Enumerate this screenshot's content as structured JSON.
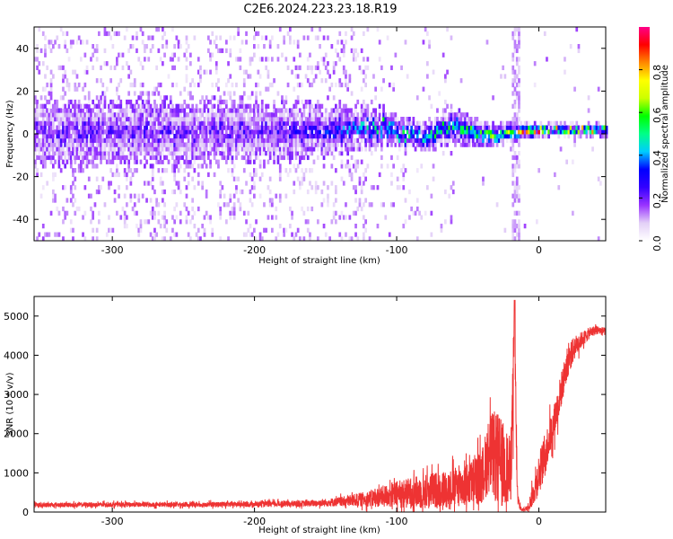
{
  "title": "C2E6.2024.223.23.18.R19",
  "chart_data": [
    {
      "type": "heatmap",
      "title": "C2E6.2024.223.23.18.R19",
      "xlabel": "Height of straight line (km)",
      "ylabel": "Frequency (Hz)",
      "xlim": [
        -355,
        47
      ],
      "ylim": [
        -50,
        50
      ],
      "x_ticks": [
        -300,
        -200,
        -100,
        0
      ],
      "y_ticks": [
        -40,
        -20,
        0,
        20,
        40
      ],
      "colorbar": {
        "label": "Normalized spectral amplitude",
        "range": [
          0,
          1
        ],
        "ticks": [
          "0.0",
          "0.2",
          "0.4",
          "0.6",
          "0.8"
        ],
        "colormap": [
          "#ffffff",
          "#e3d0f7",
          "#9933ff",
          "#3300ff",
          "#0000ff",
          "#00ccff",
          "#00ff88",
          "#00ff00",
          "#ccff00",
          "#ffff00",
          "#ff8800",
          "#ff0000",
          "#ff0088"
        ]
      },
      "signal_track": [
        {
          "x": -355,
          "freq": 0,
          "spread": 10,
          "amp": 0.2
        },
        {
          "x": -200,
          "freq": 0,
          "spread": 9,
          "amp": 0.2
        },
        {
          "x": -140,
          "freq": 1,
          "spread": 7,
          "amp": 0.3
        },
        {
          "x": -110,
          "freq": 2,
          "spread": 5,
          "amp": 0.45
        },
        {
          "x": -80,
          "freq": -2,
          "spread": 4,
          "amp": 0.5
        },
        {
          "x": -60,
          "freq": 3,
          "spread": 5,
          "amp": 0.45
        },
        {
          "x": -40,
          "freq": -1,
          "spread": 4,
          "amp": 0.55
        },
        {
          "x": -30,
          "freq": -2,
          "spread": 3,
          "amp": 0.6
        },
        {
          "x": -20,
          "freq": 0,
          "spread": 3,
          "amp": 0.6
        },
        {
          "x": 0,
          "freq": 1,
          "spread": 2,
          "amp": 0.85
        },
        {
          "x": 20,
          "freq": 1,
          "spread": 2,
          "amp": 0.6
        },
        {
          "x": 47,
          "freq": 1,
          "spread": 2,
          "amp": 0.7
        }
      ]
    },
    {
      "type": "line",
      "xlabel": "Height of straight line (km)",
      "ylabel": "SNR (10 * v/v)",
      "xlim": [
        -355,
        47
      ],
      "ylim": [
        0,
        5500
      ],
      "x_ticks": [
        -300,
        -200,
        -100,
        0
      ],
      "y_ticks": [
        0,
        1000,
        2000,
        3000,
        4000,
        5000
      ],
      "series": [
        {
          "color": "#ee3333",
          "x": [
            -355,
            -300,
            -250,
            -200,
            -160,
            -140,
            -120,
            -100,
            -80,
            -60,
            -50,
            -40,
            -35,
            -30,
            -25,
            -20,
            -17,
            -15,
            -12,
            -8,
            -4,
            0,
            5,
            10,
            15,
            20,
            25,
            30,
            35,
            40,
            47
          ],
          "y": [
            180,
            190,
            190,
            200,
            220,
            260,
            340,
            450,
            520,
            620,
            700,
            900,
            1500,
            1400,
            1200,
            1000,
            4200,
            300,
            50,
            100,
            450,
            1000,
            1600,
            2200,
            3000,
            3800,
            4200,
            4400,
            4550,
            4650,
            4600
          ],
          "noise": [
            60,
            60,
            60,
            70,
            80,
            120,
            200,
            350,
            450,
            500,
            550,
            700,
            1000,
            1200,
            1100,
            900,
            1200,
            250,
            30,
            80,
            300,
            500,
            500,
            450,
            450,
            400,
            300,
            200,
            150,
            120,
            100
          ]
        }
      ]
    }
  ]
}
